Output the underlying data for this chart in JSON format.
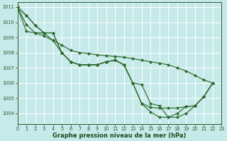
{
  "xlabel": "Graphe pression niveau de la mer (hPa)",
  "bg_color": "#c6e9e9",
  "grid_color": "#ffffff",
  "line_color": "#2d6b2d",
  "xlim": [
    0,
    23
  ],
  "ylim": [
    1003.3,
    1011.3
  ],
  "yticks": [
    1004,
    1005,
    1006,
    1007,
    1008,
    1009,
    1010,
    1011
  ],
  "xticks": [
    0,
    1,
    2,
    3,
    4,
    5,
    6,
    7,
    8,
    9,
    10,
    11,
    12,
    13,
    14,
    15,
    16,
    17,
    18,
    19,
    20,
    21,
    22,
    23
  ],
  "series_x": [
    [
      0,
      1,
      2,
      3,
      4,
      5,
      6,
      7,
      8,
      9,
      10,
      11,
      12,
      13,
      14,
      15,
      16,
      17,
      18,
      19,
      20,
      21,
      22
    ],
    [
      0,
      1,
      2,
      3,
      4,
      5,
      6,
      7,
      8,
      9,
      10,
      11,
      12,
      13,
      14,
      15,
      16,
      17,
      18,
      19,
      20,
      21,
      22
    ],
    [
      0,
      1,
      2,
      3,
      4,
      5,
      6,
      7,
      8,
      9,
      10,
      11,
      12,
      13,
      14,
      15,
      16,
      17,
      18,
      19,
      20,
      21,
      22
    ],
    [
      0,
      1,
      2,
      3,
      4,
      5,
      6,
      7,
      8,
      9,
      10,
      11,
      12,
      13,
      14,
      15,
      16,
      17,
      18,
      19,
      20,
      21,
      22
    ]
  ],
  "series_y": [
    [
      1011.0,
      1010.45,
      1009.8,
      1009.3,
      1009.3,
      1008.0,
      1007.4,
      1007.2,
      1007.2,
      1007.2,
      1007.4,
      1007.5,
      1007.2,
      1006.0,
      1005.9,
      1004.65,
      1004.5,
      1003.75,
      1003.75,
      1004.0,
      1004.5,
      1005.1,
      1006.0
    ],
    [
      1011.0,
      1010.45,
      1009.8,
      1009.3,
      1009.3,
      1008.0,
      1007.4,
      1007.2,
      1007.2,
      1007.2,
      1007.4,
      1007.5,
      1007.2,
      1006.0,
      1004.65,
      1004.4,
      1004.35,
      1004.35,
      1004.35,
      1004.45,
      1004.5,
      1005.1,
      1006.0
    ],
    [
      1011.0,
      1009.85,
      1009.3,
      1009.3,
      1008.8,
      1008.0,
      1007.4,
      1007.2,
      1007.2,
      1007.2,
      1007.4,
      1007.5,
      1007.2,
      1006.0,
      1004.65,
      1004.1,
      1003.75,
      1003.75,
      1004.0,
      1004.45,
      1004.5,
      1005.1,
      1006.0
    ],
    [
      1011.0,
      1009.4,
      1009.3,
      1009.1,
      1008.8,
      1008.5,
      1008.15,
      1008.0,
      1007.95,
      1007.85,
      1007.8,
      1007.75,
      1007.7,
      1007.6,
      1007.5,
      1007.4,
      1007.3,
      1007.2,
      1007.0,
      1006.8,
      1006.5,
      1006.2,
      1006.0
    ]
  ]
}
